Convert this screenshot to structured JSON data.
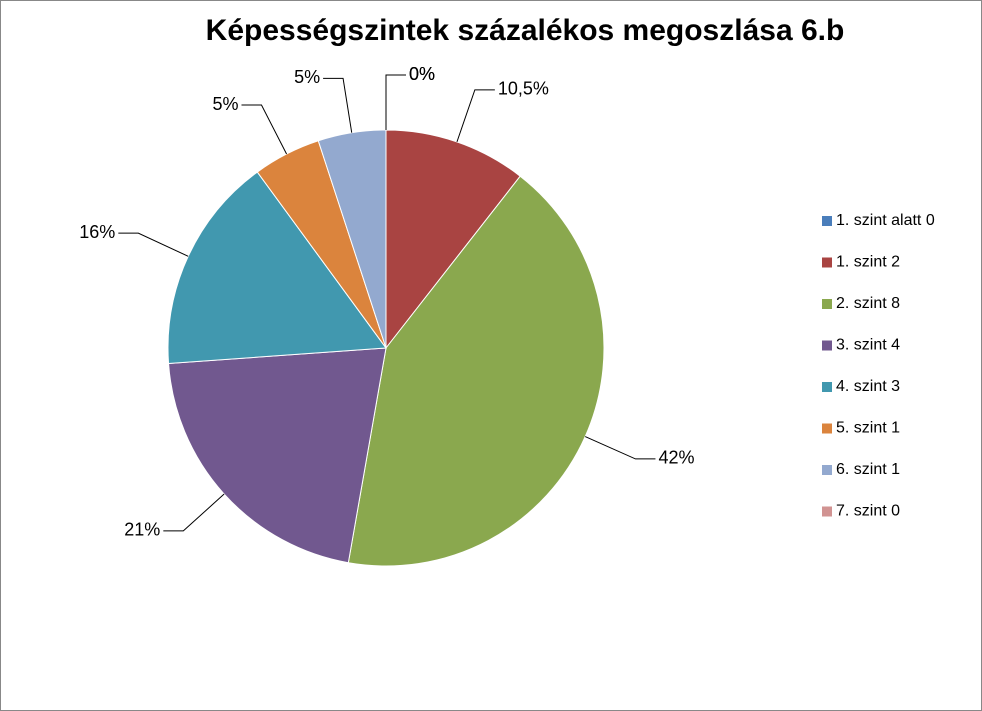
{
  "chart_data": {
    "type": "pie",
    "title": "Képességszintek százalékos megoszlása 6.b",
    "categories": [
      "1. szint alatt 0",
      "1. szint  2",
      "2. szint  8",
      "3. szint  4",
      "4. szint  3",
      "5. szint 1",
      "6. szint 1",
      "7. szint 0"
    ],
    "values": [
      0,
      10.5,
      42,
      21,
      16,
      5,
      5,
      0
    ],
    "value_labels": [
      "0%",
      "10,5%",
      "42%",
      "21%",
      "16%",
      "5%",
      "5%",
      "0%"
    ],
    "colors": [
      "#4a7ebb",
      "#a94442",
      "#8aa84e",
      "#71588f",
      "#4198af",
      "#db843d",
      "#93a9cf",
      "#d19392"
    ],
    "legend": "right"
  }
}
